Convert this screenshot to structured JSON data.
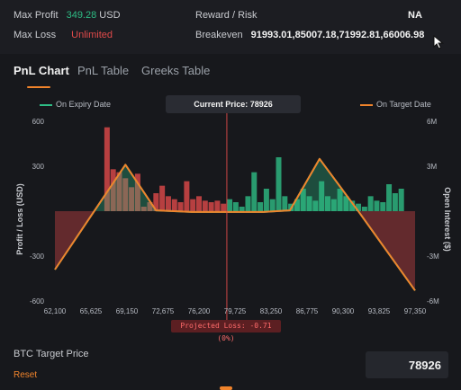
{
  "summary": {
    "max_profit_label": "Max Profit",
    "max_profit_value": "349.28",
    "max_profit_unit": "USD",
    "max_loss_label": "Max Loss",
    "max_loss_value": "Unlimited",
    "reward_risk_label": "Reward / Risk",
    "reward_risk_value": "NA",
    "breakeven_label": "Breakeven",
    "breakeven_value": "91993.01,85007.18,71992.81,66006.98"
  },
  "tabs": [
    {
      "label": "PnL Chart",
      "active": true
    },
    {
      "label": "PnL Table",
      "active": false
    },
    {
      "label": "Greeks Table",
      "active": false
    }
  ],
  "legend": {
    "expiry_label": "On Expiry Date",
    "target_label": "On Target Date",
    "expiry_color": "#2ebd85",
    "target_color": "#f0832b"
  },
  "current_price_label": "Current Price: 78926",
  "projected_loss_label": "Projected Loss: -0.71 (0%)",
  "target": {
    "label": "BTC Target Price",
    "reset_label": "Reset",
    "value": "78926"
  },
  "colors": {
    "profit": "#2ebd85",
    "loss": "#e04a4a",
    "accent": "#f0832b",
    "background": "#17181c"
  },
  "chart_data": {
    "type": "line",
    "ylabel": "Profit / Loss (USD)",
    "y2label": "Open Interest ($)",
    "xlim": [
      62100,
      97350
    ],
    "ylim": [
      -600,
      600
    ],
    "y2lim": [
      -6000000,
      6000000
    ],
    "x_ticks": [
      "62,100",
      "65,625",
      "69,150",
      "72,675",
      "76,200",
      "79,725",
      "83,250",
      "86,775",
      "90,300",
      "93,825",
      "97,350"
    ],
    "y_ticks": [
      {
        "value": 600,
        "label": "600"
      },
      {
        "value": 300,
        "label": "300"
      },
      {
        "value": -300,
        "label": "-300"
      },
      {
        "value": -600,
        "label": "-600"
      }
    ],
    "y2_ticks": [
      {
        "value": 6000000,
        "label": "6M"
      },
      {
        "value": 3000000,
        "label": "3M"
      },
      {
        "value": -3000000,
        "label": "-3M"
      },
      {
        "value": -6000000,
        "label": "-6M"
      }
    ],
    "current_price": 78926,
    "series": [
      {
        "name": "On Expiry Date",
        "x": [
          62100,
          69000,
          72000,
          75500,
          79000,
          82500,
          85100,
          88000,
          91900,
          97350
        ],
        "y": [
          -390,
          310,
          5,
          -5,
          -5,
          -5,
          5,
          349,
          -10,
          -530
        ]
      },
      {
        "name": "On Target Date",
        "x": [
          62100,
          69000,
          72000,
          75500,
          79000,
          82500,
          85100,
          88000,
          91900,
          97350
        ],
        "y": [
          -390,
          310,
          5,
          -5,
          -5,
          -5,
          5,
          349,
          -10,
          -530
        ]
      }
    ],
    "open_interest_bars": {
      "x": [
        67200,
        67800,
        68400,
        69000,
        69600,
        70200,
        70800,
        71400,
        72000,
        72600,
        73200,
        73800,
        74400,
        75000,
        75600,
        76200,
        76800,
        77400,
        78000,
        78600,
        79200,
        79800,
        80400,
        81000,
        81600,
        82200,
        82800,
        83400,
        84000,
        84600,
        85200,
        85800,
        86400,
        87000,
        87600,
        88200,
        88800,
        89400,
        90000,
        90600,
        91200,
        91800,
        92400,
        93000,
        93600,
        94200,
        94800,
        95400,
        96000
      ],
      "values": [
        5600000,
        2800000,
        2600000,
        2200000,
        1600000,
        2500000,
        300000,
        600000,
        1200000,
        1700000,
        1000000,
        800000,
        600000,
        2000000,
        800000,
        1000000,
        700000,
        600000,
        700000,
        500000,
        800000,
        600000,
        300000,
        1000000,
        2600000,
        600000,
        1500000,
        800000,
        3600000,
        1000000,
        500000,
        800000,
        1500000,
        1000000,
        700000,
        2000000,
        1000000,
        800000,
        1500000,
        1000000,
        700000,
        500000,
        300000,
        1000000,
        700000,
        600000,
        1800000,
        1200000,
        1500000
      ]
    }
  }
}
